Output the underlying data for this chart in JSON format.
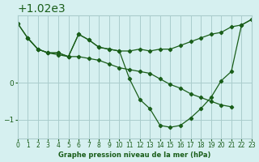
{
  "background_color": "#d6f0f0",
  "grid_color": "#aacccc",
  "line_color": "#1a5e1a",
  "title": "Graphe pression niveau de la mer (hPa)",
  "xlabel": "",
  "ylabel": "",
  "xlim": [
    0,
    23
  ],
  "ylim": [
    1018.5,
    1021.8
  ],
  "yticks": [
    1019,
    1020
  ],
  "xticks": [
    0,
    1,
    2,
    3,
    4,
    5,
    6,
    7,
    8,
    9,
    10,
    11,
    12,
    13,
    14,
    15,
    16,
    17,
    18,
    19,
    20,
    21,
    22,
    23
  ],
  "series": [
    {
      "x": [
        0,
        1,
        2,
        3,
        4,
        5,
        6,
        7,
        8,
        9,
        10,
        11,
        12,
        13,
        14,
        15,
        16,
        17,
        18,
        19,
        20,
        21,
        22,
        23
      ],
      "y": [
        1021.6,
        1021.2,
        1020.9,
        1020.8,
        1020.8,
        1020.7,
        1021.3,
        1021.15,
        1020.95,
        1020.9,
        1020.85,
        1020.85,
        1020.9,
        1020.85,
        1020.9,
        1020.9,
        1021.0,
        1021.1,
        1021.2,
        1021.3,
        1021.35,
        1021.5,
        1021.55,
        1021.7
      ]
    },
    {
      "x": [
        0,
        1,
        2,
        3,
        4,
        5,
        6,
        7,
        8,
        9,
        10,
        11,
        12,
        13,
        14,
        15,
        16,
        17,
        18,
        19,
        20,
        21,
        22,
        23
      ],
      "y": [
        1021.6,
        1021.2,
        1020.9,
        1020.8,
        1020.8,
        1020.7,
        1021.3,
        1021.15,
        1020.95,
        1020.9,
        1020.85,
        1020.1,
        1019.55,
        1019.3,
        1018.85,
        1018.8,
        1018.85,
        1019.05,
        1019.3,
        1019.6,
        1020.05,
        1020.3,
        1021.55,
        1021.7
      ]
    },
    {
      "x": [
        1,
        2,
        3,
        4,
        5,
        6,
        7,
        8,
        9,
        10,
        11,
        12,
        13,
        14,
        15,
        16,
        17,
        18,
        19,
        20,
        21
      ],
      "y": [
        1021.2,
        1020.9,
        1020.8,
        1020.75,
        1020.7,
        1020.7,
        1020.65,
        1020.6,
        1020.5,
        1020.4,
        1020.35,
        1020.3,
        1020.25,
        1020.1,
        1019.95,
        1019.85,
        1019.7,
        1019.6,
        1019.5,
        1019.4,
        1019.35
      ]
    }
  ]
}
